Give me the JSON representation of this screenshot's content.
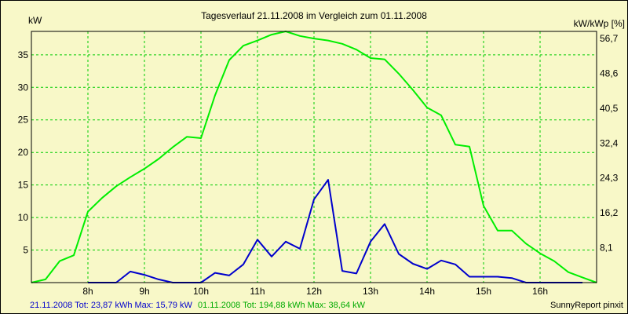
{
  "chart_data": {
    "type": "line",
    "title": "Tagesverlauf 21.11.2008 im Vergleich zum 01.11.2008",
    "ylabel_left": "kW",
    "ylabel_right": "kW/kWp [%]",
    "xlabel": "",
    "xlim": [
      7.0,
      17.0
    ],
    "ylim": [
      0,
      38.6
    ],
    "grid": true,
    "x_ticks": [
      {
        "value": 8,
        "label": "8h"
      },
      {
        "value": 9,
        "label": "9h"
      },
      {
        "value": 10,
        "label": "10h"
      },
      {
        "value": 11,
        "label": "11h"
      },
      {
        "value": 12,
        "label": "12h"
      },
      {
        "value": 13,
        "label": "13h"
      },
      {
        "value": 14,
        "label": "14h"
      },
      {
        "value": 15,
        "label": "15h"
      },
      {
        "value": 16,
        "label": "16h"
      }
    ],
    "y_ticks_left": [
      {
        "value": 5,
        "label": "5"
      },
      {
        "value": 10,
        "label": "10"
      },
      {
        "value": 15,
        "label": "15"
      },
      {
        "value": 20,
        "label": "20"
      },
      {
        "value": 25,
        "label": "25"
      },
      {
        "value": 30,
        "label": "30"
      },
      {
        "value": 35,
        "label": "35"
      }
    ],
    "y_ticks_right": [
      {
        "value": 5.36,
        "label": "8,1"
      },
      {
        "value": 10.72,
        "label": "16,2"
      },
      {
        "value": 16.08,
        "label": "24,3"
      },
      {
        "value": 21.44,
        "label": "32,4"
      },
      {
        "value": 26.8,
        "label": "40,5"
      },
      {
        "value": 32.16,
        "label": "48,6"
      },
      {
        "value": 37.52,
        "label": "56,7"
      }
    ],
    "series": [
      {
        "name": "21.11.2008",
        "color": "#0000cc",
        "points": [
          [
            8.0,
            0.0
          ],
          [
            8.5,
            0.0
          ],
          [
            8.75,
            1.7
          ],
          [
            9.0,
            1.2
          ],
          [
            9.25,
            0.5
          ],
          [
            9.5,
            0.0
          ],
          [
            10.0,
            0.0
          ],
          [
            10.25,
            1.5
          ],
          [
            10.5,
            1.1
          ],
          [
            10.75,
            2.8
          ],
          [
            11.0,
            6.6
          ],
          [
            11.25,
            4.0
          ],
          [
            11.5,
            6.3
          ],
          [
            11.75,
            5.2
          ],
          [
            12.0,
            12.8
          ],
          [
            12.25,
            15.79
          ],
          [
            12.5,
            1.8
          ],
          [
            12.75,
            1.4
          ],
          [
            13.0,
            6.3
          ],
          [
            13.25,
            9.0
          ],
          [
            13.5,
            4.4
          ],
          [
            13.75,
            2.9
          ],
          [
            14.0,
            2.1
          ],
          [
            14.25,
            3.4
          ],
          [
            14.5,
            2.8
          ],
          [
            14.75,
            0.9
          ],
          [
            15.0,
            0.9
          ],
          [
            15.25,
            0.9
          ],
          [
            15.5,
            0.7
          ],
          [
            15.75,
            0.0
          ],
          [
            16.75,
            0.0
          ]
        ]
      },
      {
        "name": "01.11.2008",
        "color": "#00ee00",
        "points": [
          [
            7.0,
            0.0
          ],
          [
            7.25,
            0.5
          ],
          [
            7.5,
            3.3
          ],
          [
            7.75,
            4.2
          ],
          [
            8.0,
            10.9
          ],
          [
            8.25,
            13.0
          ],
          [
            8.5,
            14.8
          ],
          [
            8.75,
            16.2
          ],
          [
            9.0,
            17.5
          ],
          [
            9.25,
            19.0
          ],
          [
            9.5,
            20.8
          ],
          [
            9.75,
            22.4
          ],
          [
            10.0,
            22.2
          ],
          [
            10.25,
            28.8
          ],
          [
            10.5,
            34.2
          ],
          [
            10.75,
            36.4
          ],
          [
            11.0,
            37.2
          ],
          [
            11.25,
            38.1
          ],
          [
            11.5,
            38.6
          ],
          [
            11.75,
            37.9
          ],
          [
            12.0,
            37.5
          ],
          [
            12.25,
            37.2
          ],
          [
            12.5,
            36.7
          ],
          [
            12.75,
            35.8
          ],
          [
            13.0,
            34.5
          ],
          [
            13.25,
            34.3
          ],
          [
            13.5,
            32.1
          ],
          [
            13.75,
            29.6
          ],
          [
            14.0,
            26.9
          ],
          [
            14.25,
            25.7
          ],
          [
            14.5,
            21.2
          ],
          [
            14.75,
            20.9
          ],
          [
            15.0,
            11.8
          ],
          [
            15.25,
            8.0
          ],
          [
            15.5,
            8.0
          ],
          [
            15.75,
            6.0
          ],
          [
            16.0,
            4.5
          ],
          [
            16.25,
            3.3
          ],
          [
            16.5,
            1.6
          ],
          [
            16.75,
            0.8
          ],
          [
            17.0,
            0.0
          ]
        ]
      }
    ]
  },
  "footer": {
    "series1_info": "21.11.2008 Tot: 23,87 kWh Max: 15,79 kW",
    "series2_info": "01.11.2008 Tot: 194,88 kWh Max: 38,64 kW",
    "brand": "SunnyReport pinxit"
  },
  "colors": {
    "background": "#f8f8c8",
    "grid": "#00cc00",
    "series1": "#0000cc",
    "series2": "#00ee00"
  }
}
